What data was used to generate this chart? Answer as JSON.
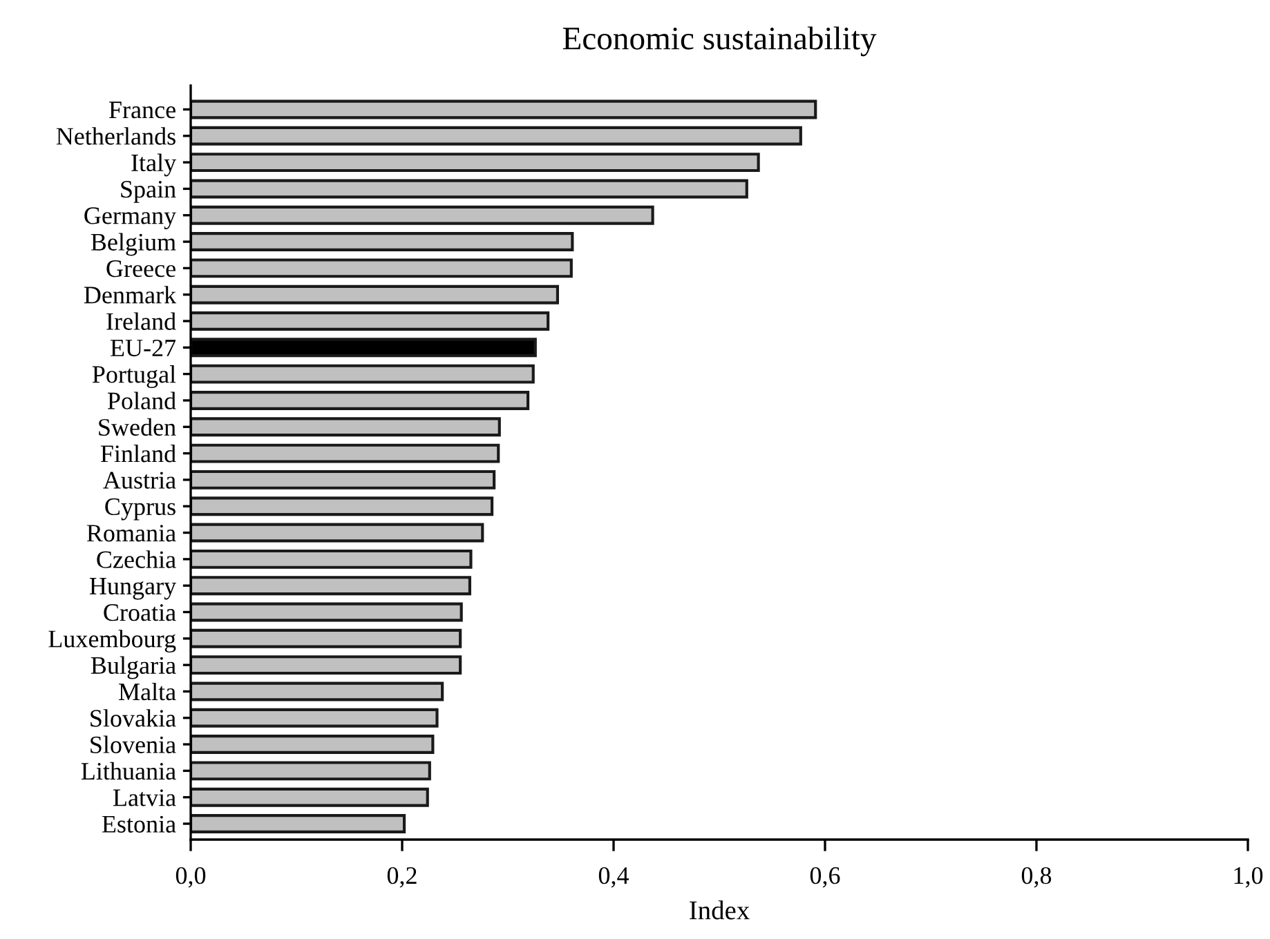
{
  "chart_data": {
    "type": "bar",
    "orientation": "horizontal",
    "title": "Economic sustainability",
    "xlabel": "Index",
    "categories": [
      "France",
      "Netherlands",
      "Italy",
      "Spain",
      "Germany",
      "Belgium",
      "Greece",
      "Denmark",
      "Ireland",
      "EU-27",
      "Portugal",
      "Poland",
      "Sweden",
      "Finland",
      "Austria",
      "Cyprus",
      "Romania",
      "Czechia",
      "Hungary",
      "Croatia",
      "Luxembourg",
      "Bulgaria",
      "Malta",
      "Slovakia",
      "Slovenia",
      "Lithuania",
      "Latvia",
      "Estonia"
    ],
    "values": [
      0.591,
      0.577,
      0.537,
      0.526,
      0.437,
      0.361,
      0.36,
      0.347,
      0.338,
      0.326,
      0.324,
      0.319,
      0.292,
      0.291,
      0.287,
      0.285,
      0.276,
      0.265,
      0.264,
      0.256,
      0.255,
      0.255,
      0.238,
      0.233,
      0.229,
      0.226,
      0.224,
      0.202
    ],
    "colors": [
      "#c0c0c0",
      "#c0c0c0",
      "#c0c0c0",
      "#c0c0c0",
      "#c0c0c0",
      "#c0c0c0",
      "#c0c0c0",
      "#c0c0c0",
      "#c0c0c0",
      "#000000",
      "#c0c0c0",
      "#c0c0c0",
      "#c0c0c0",
      "#c0c0c0",
      "#c0c0c0",
      "#c0c0c0",
      "#c0c0c0",
      "#c0c0c0",
      "#c0c0c0",
      "#c0c0c0",
      "#c0c0c0",
      "#c0c0c0",
      "#c0c0c0",
      "#c0c0c0",
      "#c0c0c0",
      "#c0c0c0",
      "#c0c0c0",
      "#c0c0c0"
    ],
    "xlim": [
      0,
      1
    ],
    "xticks": [
      {
        "value": 0,
        "label": "0,0"
      },
      {
        "value": 0.2,
        "label": "0,2"
      },
      {
        "value": 0.4,
        "label": "0,4"
      },
      {
        "value": 0.6,
        "label": "0,6"
      },
      {
        "value": 0.8,
        "label": "0,8"
      },
      {
        "value": 1,
        "label": "1,0"
      }
    ],
    "grid": false,
    "legend": false
  }
}
